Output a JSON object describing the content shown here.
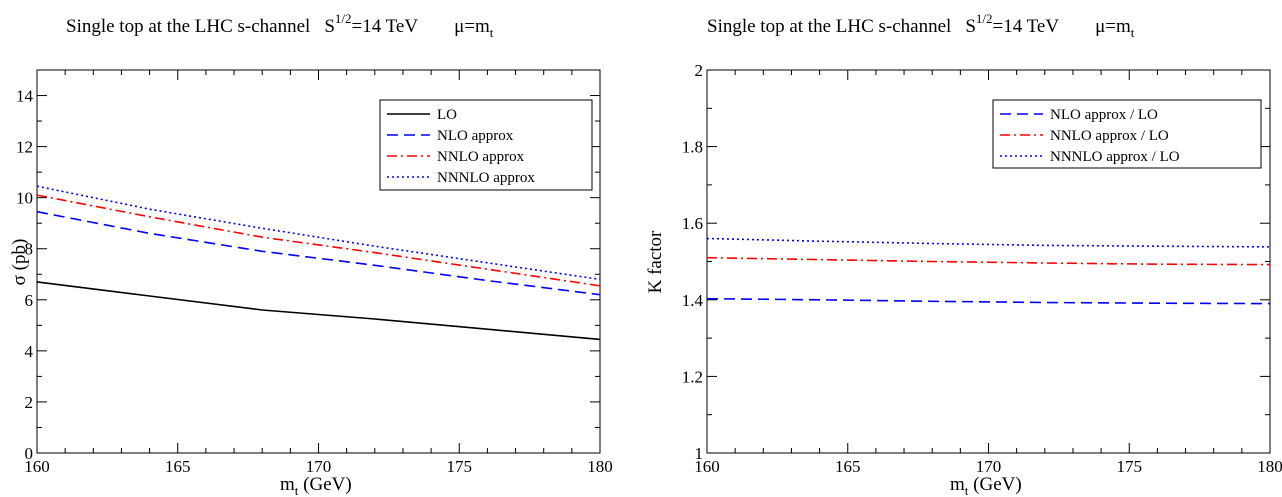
{
  "chart_data": [
    {
      "type": "line",
      "title": {
        "main": "Single top at the LHC   s-channel",
        "energy_base": "S",
        "energy_exp": "1/2",
        "energy_rest": "=14 TeV",
        "mu_base": "μ=m",
        "mu_sub": "t"
      },
      "xlabel": {
        "base": "m",
        "sub": "t",
        "rest": " (GeV)"
      },
      "ylabel": "σ  (pb)",
      "xlim": [
        160,
        180
      ],
      "ylim": [
        0,
        15
      ],
      "x_ticks": [
        "160",
        "165",
        "170",
        "175",
        "180"
      ],
      "y_ticks": [
        "0",
        "2",
        "4",
        "6",
        "8",
        "10",
        "12",
        "14"
      ],
      "legend_position": "top-right",
      "x": [
        160,
        164,
        168,
        172,
        176,
        180
      ],
      "series": [
        {
          "name": "LO",
          "color": "#000000",
          "dash": "solid",
          "values": [
            6.7,
            6.15,
            5.6,
            5.25,
            4.85,
            4.45
          ]
        },
        {
          "name": "NLO approx",
          "color": "#0000ff",
          "dash": "dashed",
          "values": [
            9.45,
            8.6,
            7.9,
            7.35,
            6.75,
            6.2
          ]
        },
        {
          "name": "NNLO approx",
          "color": "#ff0000",
          "dash": "dashdot",
          "values": [
            10.1,
            9.25,
            8.45,
            7.85,
            7.2,
            6.55
          ]
        },
        {
          "name": "NNNLO approx",
          "color": "#0000ff",
          "dash": "dotted",
          "values": [
            10.45,
            9.55,
            8.8,
            8.1,
            7.45,
            6.8
          ]
        }
      ]
    },
    {
      "type": "line",
      "title": {
        "main": "Single top at the LHC   s-channel",
        "energy_base": "S",
        "energy_exp": "1/2",
        "energy_rest": "=14 TeV",
        "mu_base": "μ=m",
        "mu_sub": "t"
      },
      "xlabel": {
        "base": "m",
        "sub": "t",
        "rest": " (GeV)"
      },
      "ylabel": "K  factor",
      "xlim": [
        160,
        180
      ],
      "ylim": [
        1,
        2
      ],
      "x_ticks": [
        "160",
        "165",
        "170",
        "175",
        "180"
      ],
      "y_ticks": [
        "1",
        "1.2",
        "1.4",
        "1.6",
        "1.8",
        "2"
      ],
      "legend_position": "top-right",
      "x": [
        160,
        164,
        168,
        172,
        176,
        180
      ],
      "series": [
        {
          "name": "NLO approx / LO",
          "color": "#0000ff",
          "dash": "dashed",
          "values": [
            1.403,
            1.4,
            1.396,
            1.393,
            1.391,
            1.39
          ]
        },
        {
          "name": "NNLO approx / LO",
          "color": "#ff0000",
          "dash": "dashdot",
          "values": [
            1.51,
            1.505,
            1.5,
            1.496,
            1.493,
            1.492
          ]
        },
        {
          "name": "NNNLO approx / LO",
          "color": "#0000ff",
          "dash": "dotted",
          "values": [
            1.56,
            1.553,
            1.547,
            1.542,
            1.54,
            1.538
          ]
        }
      ]
    }
  ]
}
